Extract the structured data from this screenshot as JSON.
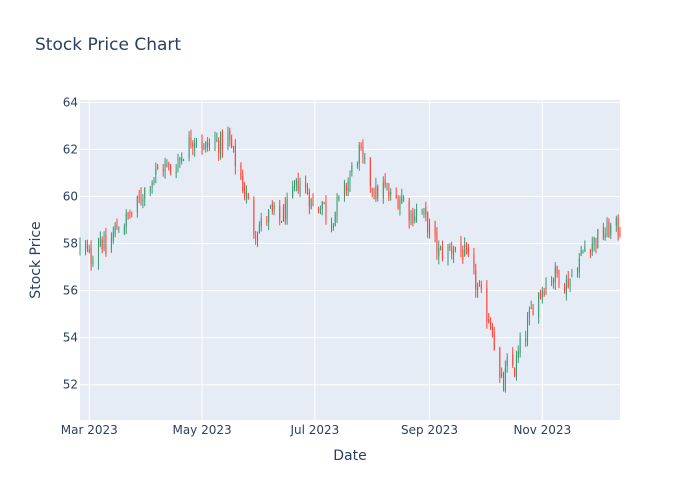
{
  "chart_data": {
    "type": "candlestick",
    "title": "Stock Price Chart",
    "xlabel": "Date",
    "ylabel": "Stock Price",
    "ylim": [
      50.5,
      64.1
    ],
    "xlim": [
      "2023-02-24",
      "2023-12-13"
    ],
    "grid": true,
    "legend": "none",
    "increasing_color": "#3d9970",
    "decreasing_color": "#ff4136",
    "plot_bg": "#e5ecf6",
    "x_ticks": [
      {
        "date": "2023-03-01",
        "label": "Mar 2023"
      },
      {
        "date": "2023-05-01",
        "label": "May 2023"
      },
      {
        "date": "2023-07-01",
        "label": "Jul 2023"
      },
      {
        "date": "2023-09-01",
        "label": "Sep 2023"
      },
      {
        "date": "2023-11-01",
        "label": "Nov 2023"
      }
    ],
    "y_ticks": [
      52,
      54,
      56,
      58,
      60,
      62,
      64
    ],
    "close_path": [
      [
        "2023-02-24",
        57.9
      ],
      [
        "2023-03-02",
        57.4
      ],
      [
        "2023-03-07",
        58.3
      ],
      [
        "2023-03-10",
        57.6
      ],
      [
        "2023-03-15",
        58.6
      ],
      [
        "2023-03-20",
        58.9
      ],
      [
        "2023-03-26",
        59.5
      ],
      [
        "2023-03-31",
        60.3
      ],
      [
        "2023-04-05",
        60.9
      ],
      [
        "2023-04-10",
        61.3
      ],
      [
        "2023-04-15",
        61.1
      ],
      [
        "2023-04-20",
        61.8
      ],
      [
        "2023-04-25",
        62.4
      ],
      [
        "2023-04-28",
        62.6
      ],
      [
        "2023-05-02",
        62.0
      ],
      [
        "2023-05-07",
        62.4
      ],
      [
        "2023-05-11",
        62.2
      ],
      [
        "2023-05-15",
        62.5
      ],
      [
        "2023-05-20",
        61.2
      ],
      [
        "2023-05-25",
        60.0
      ],
      [
        "2023-05-29",
        58.6
      ],
      [
        "2023-06-02",
        58.8
      ],
      [
        "2023-06-07",
        59.3
      ],
      [
        "2023-06-12",
        59.0
      ],
      [
        "2023-06-17",
        59.6
      ],
      [
        "2023-06-22",
        60.6
      ],
      [
        "2023-06-27",
        60.2
      ],
      [
        "2023-07-01",
        59.3
      ],
      [
        "2023-07-05",
        59.8
      ],
      [
        "2023-07-09",
        58.8
      ],
      [
        "2023-07-13",
        59.6
      ],
      [
        "2023-07-17",
        60.2
      ],
      [
        "2023-07-21",
        61.1
      ],
      [
        "2023-07-25",
        61.9
      ],
      [
        "2023-07-29",
        61.0
      ],
      [
        "2023-08-03",
        60.1
      ],
      [
        "2023-08-07",
        60.4
      ],
      [
        "2023-08-12",
        59.8
      ],
      [
        "2023-08-17",
        60.0
      ],
      [
        "2023-08-22",
        59.2
      ],
      [
        "2023-08-27",
        59.5
      ],
      [
        "2023-09-01",
        58.6
      ],
      [
        "2023-09-06",
        57.6
      ],
      [
        "2023-09-11",
        57.7
      ],
      [
        "2023-09-16",
        57.9
      ],
      [
        "2023-09-21",
        57.4
      ],
      [
        "2023-09-26",
        56.3
      ],
      [
        "2023-10-01",
        55.2
      ],
      [
        "2023-10-05",
        54.5
      ],
      [
        "2023-10-08",
        52.2
      ],
      [
        "2023-10-11",
        52.0
      ],
      [
        "2023-10-14",
        53.2
      ],
      [
        "2023-10-17",
        52.6
      ],
      [
        "2023-10-20",
        53.6
      ],
      [
        "2023-10-23",
        54.2
      ],
      [
        "2023-10-27",
        55.4
      ],
      [
        "2023-10-31",
        56.0
      ],
      [
        "2023-11-04",
        56.5
      ],
      [
        "2023-11-09",
        56.7
      ],
      [
        "2023-11-14",
        56.3
      ],
      [
        "2023-11-19",
        56.9
      ],
      [
        "2023-11-24",
        57.9
      ],
      [
        "2023-11-29",
        58.1
      ],
      [
        "2023-12-04",
        58.4
      ],
      [
        "2023-12-09",
        58.7
      ],
      [
        "2023-12-13",
        58.6
      ]
    ]
  }
}
